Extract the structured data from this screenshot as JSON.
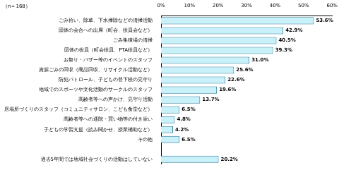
{
  "chart_data": {
    "type": "bar",
    "orientation": "horizontal",
    "title": "（n＝168）",
    "categories": [
      "ごみ拾い、除草、下水掃除などの清掃活動",
      "団体の会合への出席（町会、役員会など）",
      "ごみ集積場の清掃",
      "団体の役員（町会役員、PTA役員など）",
      "お祭り・バザー等のイベントのスタッフ",
      "資源ごみの回収（廃品回収、リサイクル活動など）",
      "防犯パトロール、子どもの登下校の見守り",
      "地域でのスポーツや文化活動のサークルのスタッフ",
      "高齢者等への声かけ、見守り活動",
      "居場所づくりのスタッフ（コミュニティサロン、こども食堂など）",
      "高齢者等への通院・買い物等の付き添い",
      "子どもの学習支援（読み聞かせ、授業補助など）",
      "その他",
      null,
      "過去5年間では地域社会づくりの活動はしていない"
    ],
    "values": [
      53.6,
      42.9,
      40.5,
      39.3,
      31.0,
      25.6,
      22.6,
      19.6,
      13.7,
      6.5,
      4.8,
      4.2,
      6.5,
      null,
      20.2
    ],
    "value_labels": [
      "53.6%",
      "42.9%",
      "40.5%",
      "39.3%",
      "31.0%",
      "25.6%",
      "22.6%",
      "19.6%",
      "13.7%",
      "6.5%",
      "4.8%",
      "4.2%",
      "6.5%",
      null,
      "20.2%"
    ],
    "color": "#c8f1fa",
    "xlim": [
      0,
      60
    ],
    "xticks": [
      {
        "value": 0,
        "label": "0%"
      },
      {
        "value": 10,
        "label": "10%"
      },
      {
        "value": 20,
        "label": "20%"
      },
      {
        "value": 30,
        "label": "30%"
      },
      {
        "value": 40,
        "label": "40%"
      },
      {
        "value": 50,
        "label": "50%"
      },
      {
        "value": 60,
        "label": "60%"
      }
    ],
    "grid": false,
    "data_labels": true
  }
}
